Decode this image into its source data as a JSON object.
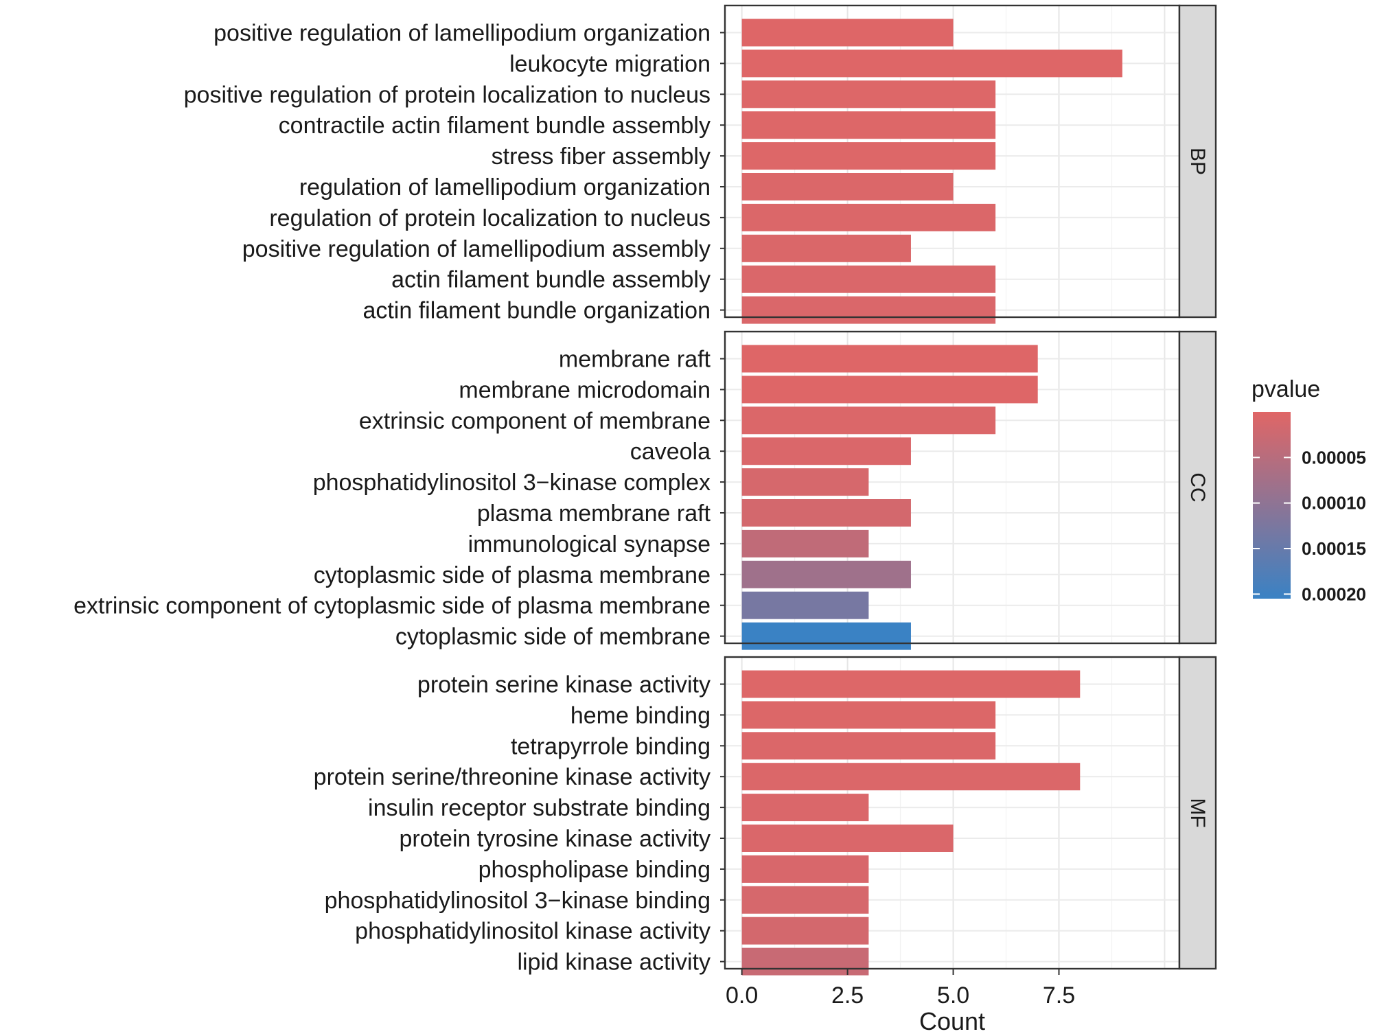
{
  "chart_data": {
    "type": "bar",
    "orientation": "horizontal",
    "xlabel": "Count",
    "x_ticks": [
      0,
      2.5,
      5,
      7.5
    ],
    "x_tick_labels": [
      "0.0",
      "2.5",
      "5.0",
      "7.5"
    ],
    "xlim": [
      -0.4,
      10.35
    ],
    "legend": {
      "title": "pvalue",
      "position": "right",
      "low_color": "#E06666",
      "high_color": "#3A82C4",
      "range": [
        0,
        0.000205
      ],
      "ticks": [
        5e-05,
        0.0001,
        0.00015,
        0.0002
      ],
      "tick_labels": [
        "0.00005",
        "0.00010",
        "0.00015",
        "0.00020"
      ]
    },
    "panels": [
      {
        "name": "BP",
        "categories": [
          "positive regulation of lamellipodium organization",
          "leukocyte migration",
          "positive regulation of protein localization to nucleus",
          "contractile actin filament bundle assembly",
          "stress fiber assembly",
          "regulation of lamellipodium organization",
          "regulation of protein localization to nucleus",
          "positive regulation of lamellipodium assembly",
          "actin filament bundle assembly",
          "actin filament bundle organization"
        ],
        "values": [
          5,
          9,
          6,
          6,
          6,
          5,
          6,
          4,
          6,
          6
        ],
        "pvalues": [
          3e-06,
          2e-06,
          4e-06,
          4e-06,
          4e-06,
          6e-06,
          6e-06,
          7e-06,
          8e-06,
          8e-06
        ]
      },
      {
        "name": "CC",
        "categories": [
          "membrane raft",
          "membrane microdomain",
          "extrinsic component of membrane",
          "caveola",
          "phosphatidylinositol 3−kinase complex",
          "plasma membrane raft",
          "immunological synapse",
          "cytoplasmic side of plasma membrane",
          "extrinsic component of cytoplasmic side of plasma membrane",
          "cytoplasmic side of membrane"
        ],
        "values": [
          7,
          7,
          6,
          4,
          3,
          4,
          3,
          4,
          3,
          4
        ],
        "pvalues": [
          2e-06,
          2e-06,
          6e-06,
          8e-06,
          1.2e-05,
          1.6e-05,
          4e-05,
          8e-05,
          0.00013,
          0.000205
        ]
      },
      {
        "name": "MF",
        "categories": [
          "protein serine kinase activity",
          "heme binding",
          "tetrapyrrole binding",
          "protein serine/threonine kinase activity",
          "insulin receptor substrate binding",
          "protein tyrosine kinase activity",
          "phospholipase binding",
          "phosphatidylinositol 3−kinase binding",
          "phosphatidylinositol kinase activity",
          "lipid kinase activity"
        ],
        "values": [
          8,
          6,
          6,
          8,
          3,
          5,
          3,
          3,
          3,
          3
        ],
        "pvalues": [
          4e-06,
          5e-06,
          6e-06,
          6e-06,
          8e-06,
          8e-06,
          1e-05,
          1.2e-05,
          1.6e-05,
          3e-05
        ]
      }
    ]
  }
}
